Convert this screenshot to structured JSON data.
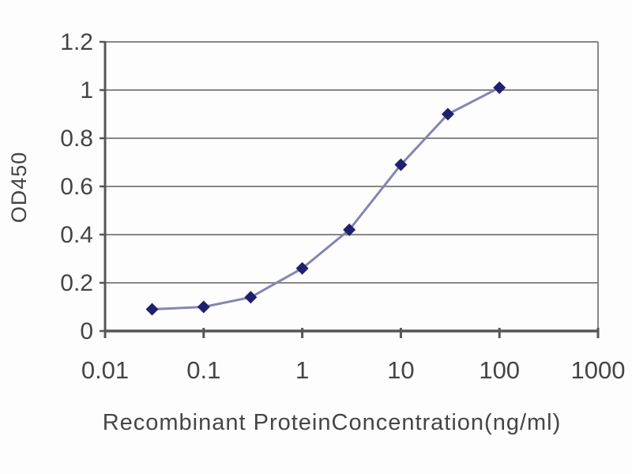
{
  "chart_data": {
    "type": "line",
    "title": "",
    "xlabel": "Recombinant ProteinConcentration(ng/ml)",
    "ylabel": "OD450",
    "x_scale": "log10",
    "xlim": [
      0.01,
      1000
    ],
    "ylim": [
      0,
      1.2
    ],
    "x_tick_values": [
      0.01,
      0.1,
      1,
      10,
      100,
      1000
    ],
    "x_tick_labels": [
      "0.01",
      "0.1",
      "1",
      "10",
      "100",
      "1000"
    ],
    "y_tick_values": [
      0,
      0.2,
      0.4,
      0.6,
      0.8,
      1,
      1.2
    ],
    "y_tick_labels": [
      "0",
      "0.2",
      "0.4",
      "0.6",
      "0.8",
      "1",
      "1.2"
    ],
    "grid": "horizontal",
    "legend_position": "none",
    "series": [
      {
        "marker": "diamond",
        "x": [
          0.03,
          0.1,
          0.3,
          1,
          3,
          10,
          30,
          100
        ],
        "y": [
          0.09,
          0.1,
          0.14,
          0.26,
          0.42,
          0.69,
          0.9,
          1.01
        ]
      }
    ],
    "colors": {
      "line": "#8585b2",
      "marker": "#20206e",
      "grid": "#878787",
      "axis": "#565656",
      "text": "#454545",
      "background": "#fdfdfd"
    }
  }
}
